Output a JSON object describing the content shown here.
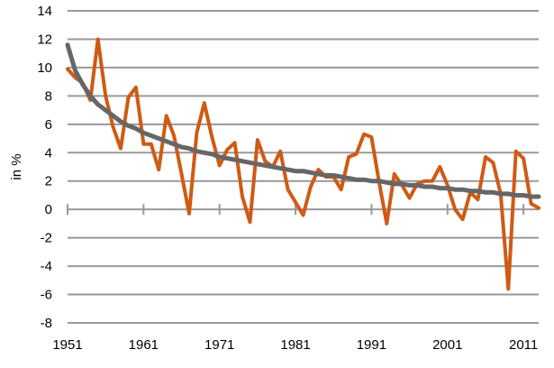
{
  "chart_data": {
    "type": "line",
    "title": "",
    "xlabel": "",
    "ylabel": "in %",
    "ylim": [
      -8,
      14
    ],
    "yticks": [
      -8,
      -6,
      -4,
      -2,
      0,
      2,
      4,
      6,
      8,
      10,
      12,
      14
    ],
    "xlim": [
      1951,
      2013
    ],
    "xticks": [
      1951,
      1961,
      1971,
      1981,
      1991,
      2001,
      2011
    ],
    "grid": "horizontal",
    "legend": "none",
    "x": [
      1951,
      1952,
      1953,
      1954,
      1955,
      1956,
      1957,
      1958,
      1959,
      1960,
      1961,
      1962,
      1963,
      1964,
      1965,
      1966,
      1967,
      1968,
      1969,
      1970,
      1971,
      1972,
      1973,
      1974,
      1975,
      1976,
      1977,
      1978,
      1979,
      1980,
      1981,
      1982,
      1983,
      1984,
      1985,
      1986,
      1987,
      1988,
      1989,
      1990,
      1991,
      1992,
      1993,
      1994,
      1995,
      1996,
      1997,
      1998,
      1999,
      2000,
      2001,
      2002,
      2003,
      2004,
      2005,
      2006,
      2007,
      2008,
      2009,
      2010,
      2011,
      2012,
      2013
    ],
    "series": [
      {
        "color": "#D05A14",
        "values": [
          9.9,
          9.3,
          8.9,
          7.7,
          12.0,
          8.0,
          5.8,
          4.3,
          7.9,
          8.6,
          4.6,
          4.6,
          2.8,
          6.6,
          5.2,
          2.5,
          -0.3,
          5.4,
          7.5,
          5.1,
          3.1,
          4.2,
          4.7,
          0.9,
          -0.9,
          4.9,
          3.4,
          3.0,
          4.1,
          1.4,
          0.5,
          -0.4,
          1.6,
          2.8,
          2.3,
          2.3,
          1.4,
          3.7,
          3.9,
          5.3,
          5.1,
          1.9,
          -1.0,
          2.5,
          1.7,
          0.8,
          1.8,
          2.0,
          2.0,
          3.0,
          1.7,
          0.0,
          -0.7,
          1.2,
          0.7,
          3.7,
          3.3,
          1.1,
          -5.6,
          4.1,
          3.6,
          0.4,
          0.1
        ]
      },
      {
        "color": "#666666",
        "values": [
          11.6,
          9.8,
          8.8,
          8.0,
          7.4,
          7.0,
          6.6,
          6.2,
          5.9,
          5.7,
          5.4,
          5.2,
          5.0,
          4.8,
          4.6,
          4.4,
          4.3,
          4.1,
          4.0,
          3.9,
          3.7,
          3.6,
          3.5,
          3.4,
          3.3,
          3.2,
          3.1,
          3.0,
          2.9,
          2.8,
          2.7,
          2.7,
          2.6,
          2.5,
          2.4,
          2.4,
          2.3,
          2.2,
          2.1,
          2.1,
          2.0,
          2.0,
          1.9,
          1.8,
          1.8,
          1.7,
          1.7,
          1.6,
          1.6,
          1.5,
          1.5,
          1.4,
          1.4,
          1.3,
          1.3,
          1.2,
          1.2,
          1.1,
          1.1,
          1.0,
          1.0,
          0.9,
          0.9
        ]
      }
    ]
  }
}
